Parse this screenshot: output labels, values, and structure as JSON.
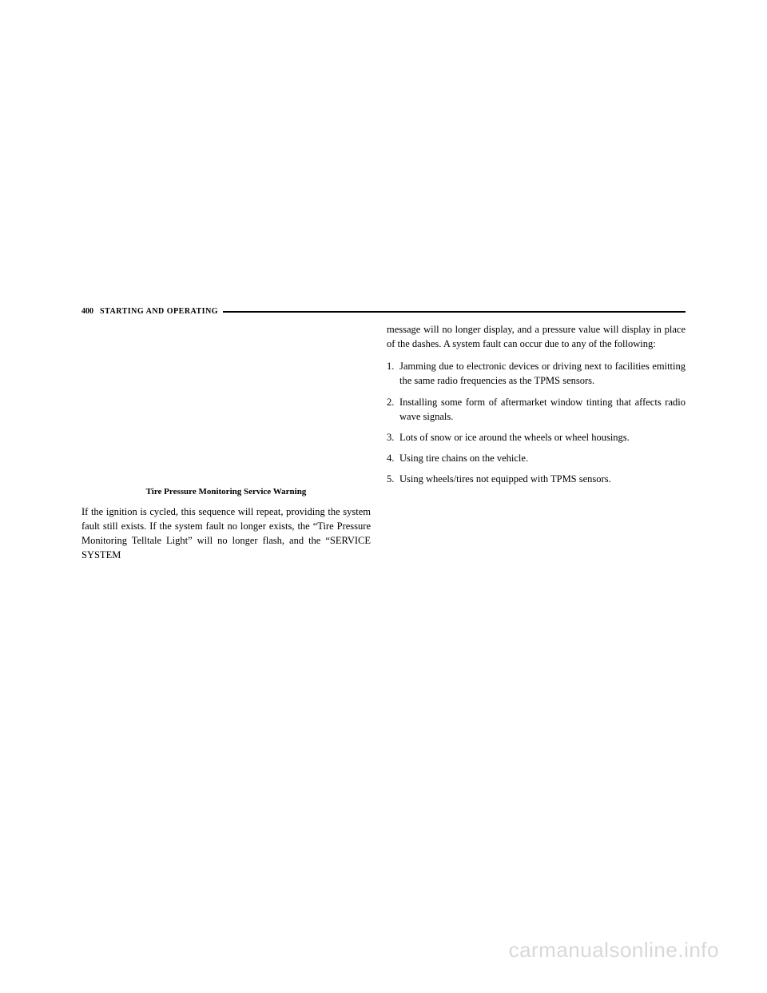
{
  "header": {
    "page_number": "400",
    "section": "STARTING AND OPERATING"
  },
  "left_column": {
    "caption": "Tire Pressure Monitoring Service Warning",
    "body": "If the ignition is cycled, this sequence will repeat, providing the system fault still exists. If the system fault no longer exists, the “Tire Pressure Monitoring Telltale Light” will no longer flash, and the “SERVICE SYSTEM"
  },
  "right_column": {
    "intro": "message will no longer display, and a pressure value will display in place of the dashes. A system fault can occur due to any of the following:",
    "items": [
      {
        "n": "1.",
        "text": "Jamming due to electronic devices or driving next to facilities emitting the same radio frequencies as the TPMS sensors."
      },
      {
        "n": "2.",
        "text": "Installing some form of aftermarket window tinting that affects radio wave signals."
      },
      {
        "n": "3.",
        "text": "Lots of snow or ice around the wheels or wheel housings."
      },
      {
        "n": "4.",
        "text": "Using tire chains on the vehicle."
      },
      {
        "n": "5.",
        "text": "Using wheels/tires not equipped with TPMS sensors."
      }
    ]
  },
  "watermark": "carmanualsonline.info",
  "colors": {
    "background": "#ffffff",
    "text": "#000000",
    "watermark": "#d8d8d8"
  }
}
